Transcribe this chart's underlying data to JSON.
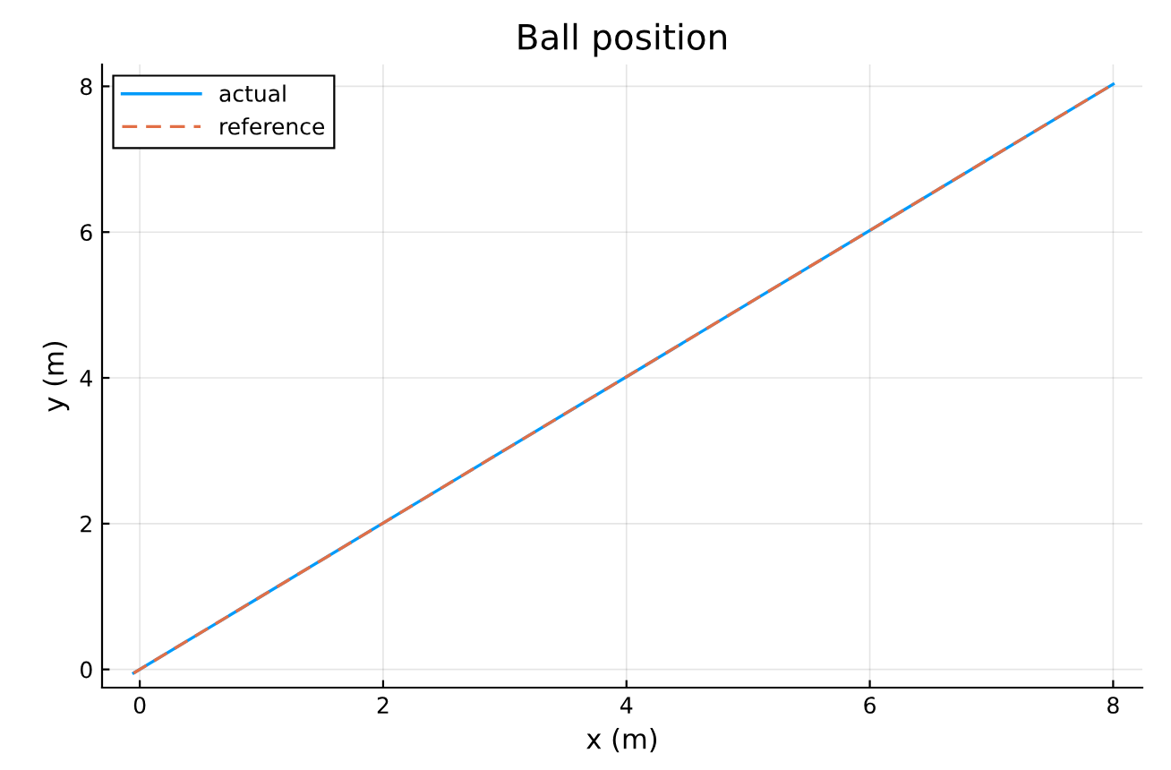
{
  "chart_data": {
    "type": "line",
    "title": "Ball position",
    "xlabel": "x (m)",
    "ylabel": "y (m)",
    "series": [
      {
        "name": "actual",
        "color": "#009af9",
        "values": [
          -0.05,
          8.03
        ],
        "line_style": "solid"
      },
      {
        "name": "reference",
        "color": "#e26f46",
        "values": [
          -0.05,
          8.03
        ],
        "line_style": "dashed"
      }
    ],
    "x": [
      -0.05,
      8.0
    ],
    "xlim": [
      -0.31,
      8.24
    ],
    "ylim": [
      -0.25,
      8.3
    ],
    "xticks": [
      0,
      2,
      4,
      6,
      8
    ],
    "yticks": [
      0,
      2,
      4,
      6,
      8
    ],
    "grid": true,
    "legend": "top left"
  }
}
